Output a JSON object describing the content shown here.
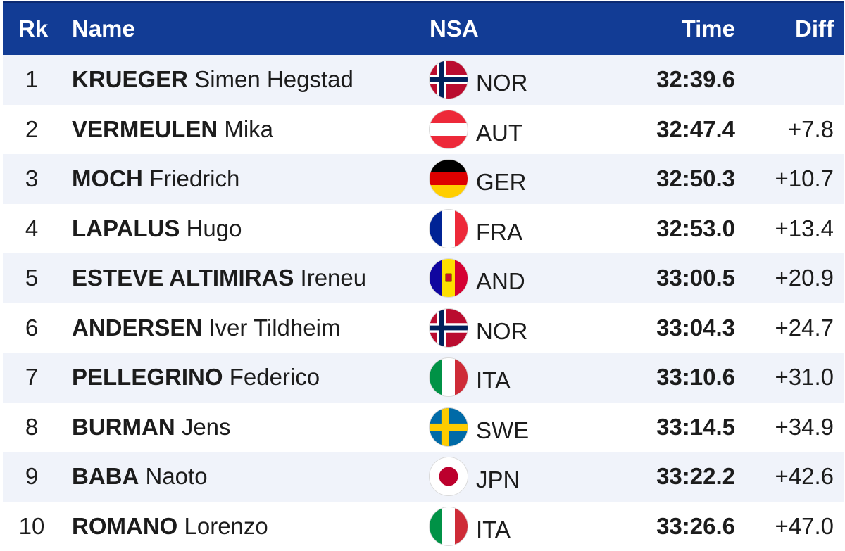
{
  "header": {
    "rank": "Rk",
    "name": "Name",
    "nsa": "NSA",
    "time": "Time",
    "diff": "Diff"
  },
  "rows": [
    {
      "rank": "1",
      "surname": "KRUEGER",
      "given": "Simen Hegstad",
      "nsa": "NOR",
      "flag": "norway-flag-icon",
      "time": "32:39.6",
      "diff": ""
    },
    {
      "rank": "2",
      "surname": "VERMEULEN",
      "given": "Mika",
      "nsa": "AUT",
      "flag": "austria-flag-icon",
      "time": "32:47.4",
      "diff": "+7.8"
    },
    {
      "rank": "3",
      "surname": "MOCH",
      "given": "Friedrich",
      "nsa": "GER",
      "flag": "germany-flag-icon",
      "time": "32:50.3",
      "diff": "+10.7"
    },
    {
      "rank": "4",
      "surname": "LAPALUS",
      "given": "Hugo",
      "nsa": "FRA",
      "flag": "france-flag-icon",
      "time": "32:53.0",
      "diff": "+13.4"
    },
    {
      "rank": "5",
      "surname": "ESTEVE ALTIMIRAS",
      "given": "Ireneu",
      "nsa": "AND",
      "flag": "andorra-flag-icon",
      "time": "33:00.5",
      "diff": "+20.9"
    },
    {
      "rank": "6",
      "surname": "ANDERSEN",
      "given": "Iver Tildheim",
      "nsa": "NOR",
      "flag": "norway-flag-icon",
      "time": "33:04.3",
      "diff": "+24.7"
    },
    {
      "rank": "7",
      "surname": "PELLEGRINO",
      "given": "Federico",
      "nsa": "ITA",
      "flag": "italy-flag-icon",
      "time": "33:10.6",
      "diff": "+31.0"
    },
    {
      "rank": "8",
      "surname": "BURMAN",
      "given": "Jens",
      "nsa": "SWE",
      "flag": "sweden-flag-icon",
      "time": "33:14.5",
      "diff": "+34.9"
    },
    {
      "rank": "9",
      "surname": "BABA",
      "given": "Naoto",
      "nsa": "JPN",
      "flag": "japan-flag-icon",
      "time": "33:22.2",
      "diff": "+42.6"
    },
    {
      "rank": "10",
      "surname": "ROMANO",
      "given": "Lorenzo",
      "nsa": "ITA",
      "flag": "italy-flag-icon",
      "time": "33:26.6",
      "diff": "+47.0"
    }
  ],
  "colors": {
    "header_bg": "#123c95",
    "row_shade": "#f0f3fa"
  }
}
